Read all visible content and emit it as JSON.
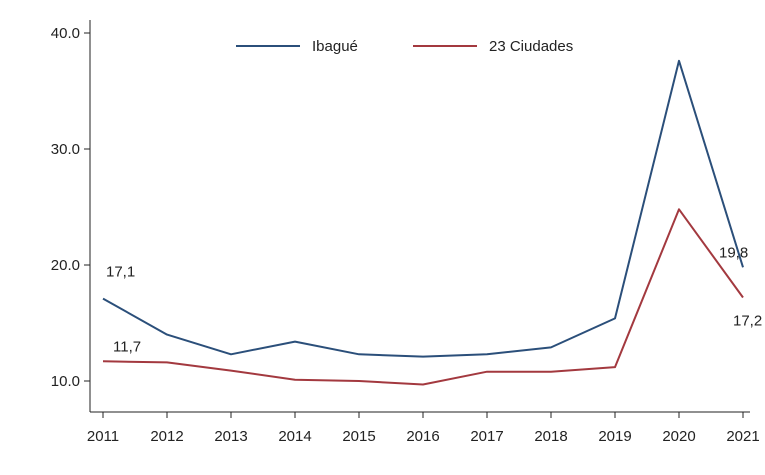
{
  "chart_data": {
    "type": "line",
    "title": "",
    "xlabel": "",
    "ylabel": "",
    "x": [
      2011,
      2012,
      2013,
      2014,
      2015,
      2016,
      2017,
      2018,
      2019,
      2020,
      2021
    ],
    "x_tick_labels": [
      "2011",
      "2012",
      "2013",
      "2014",
      "2015",
      "2016",
      "2017",
      "2018",
      "2019",
      "2020",
      "2021"
    ],
    "ylim": [
      8,
      41
    ],
    "y_ticks": [
      10,
      20,
      30,
      40
    ],
    "y_tick_labels": [
      "10.0",
      "20.0",
      "30.0",
      "40.0"
    ],
    "grid": false,
    "legend": {
      "position": "top-center",
      "entries": [
        "Ibagué",
        "23 Ciudades"
      ]
    },
    "series": [
      {
        "name": "Ibagué",
        "color": "#2b4f7a",
        "values": [
          17.1,
          14.0,
          12.3,
          13.4,
          12.3,
          12.1,
          12.3,
          12.9,
          15.4,
          37.6,
          19.8
        ]
      },
      {
        "name": "23 Ciudades",
        "color": "#a3393f",
        "values": [
          11.7,
          11.6,
          10.9,
          10.1,
          10.0,
          9.7,
          10.8,
          10.8,
          11.2,
          24.8,
          17.2
        ]
      }
    ],
    "data_labels": [
      {
        "series": 0,
        "index": 0,
        "text": "17,1"
      },
      {
        "series": 1,
        "index": 0,
        "text": "11,7"
      },
      {
        "series": 0,
        "index": 10,
        "text": "19,8"
      },
      {
        "series": 1,
        "index": 10,
        "text": "17,2"
      }
    ]
  }
}
